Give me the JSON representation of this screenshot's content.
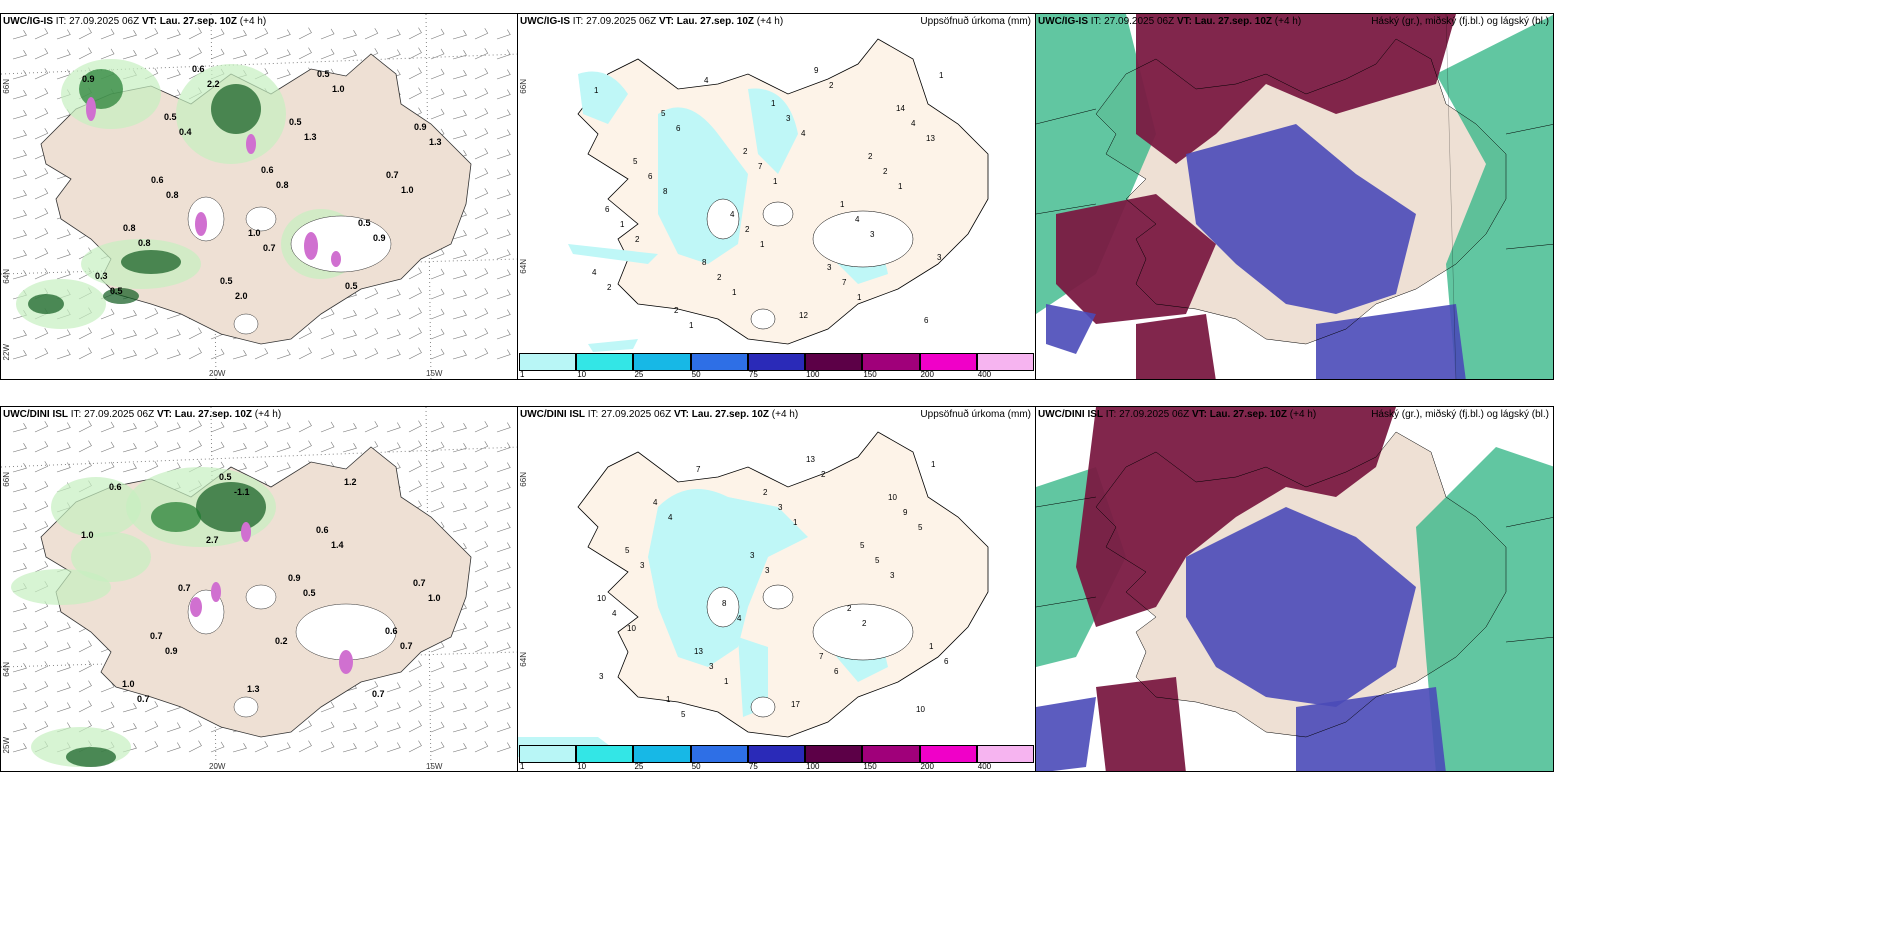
{
  "rows": [
    {
      "model": "UWC/IG-IS",
      "it_label": "IT:",
      "it_value": "27.09.2025 06Z",
      "vt_label": "VT:",
      "vt_value": "Lau. 27.sep. 10Z",
      "lead": "(+4 h)",
      "lon_labels": [
        "20W",
        "15W"
      ],
      "lat_labels_left": [
        "66N",
        "64N",
        "22W"
      ],
      "lat_labels_mid": [
        "66N",
        "64N"
      ],
      "precip_values": [
        "2",
        "1",
        "3",
        "2",
        "1",
        "2",
        "6",
        "8",
        "12",
        "14",
        "5",
        "4",
        "3",
        "6",
        "5",
        "7",
        "4",
        "4",
        "1",
        "3",
        "2",
        "1",
        "2",
        "9",
        "4",
        "6",
        "2",
        "7",
        "1",
        "6",
        "1",
        "3",
        "2",
        "4",
        "4",
        "1",
        "2",
        "1",
        "2",
        "13",
        "8",
        "1",
        "1",
        "1"
      ],
      "wind_values": [
        "0.5",
        "0.6",
        "0.5",
        "0.3",
        "0.6",
        "0.5",
        "0.7",
        "0.8",
        "0.5",
        "0.5",
        "0.9",
        "0.6",
        "1.0",
        "0.5",
        "0.9",
        "0.4",
        "0.8",
        "0.9",
        "0.5",
        "2.2",
        "1.3",
        "1.0",
        "0.8",
        "2.0",
        "1.0",
        "1.3",
        "0.8",
        "0.7"
      ]
    },
    {
      "model": "UWC/DINI ISL",
      "it_label": "IT:",
      "it_value": "27.09.2025 06Z",
      "vt_label": "VT:",
      "vt_value": "Lau. 27.sep. 10Z",
      "lead": "(+4 h)",
      "lon_labels": [
        "20W",
        "15W"
      ],
      "lat_labels_left": [
        "66N",
        "64N",
        "25W"
      ],
      "lat_labels_mid": [
        "66N",
        "64N"
      ],
      "precip_values": [
        "1",
        "1",
        "2",
        "5",
        "10",
        "13",
        "17",
        "10",
        "5",
        "8",
        "7",
        "10",
        "4",
        "3",
        "2",
        "6",
        "5",
        "3",
        "5",
        "4",
        "3",
        "13",
        "9",
        "3",
        "4",
        "6",
        "1",
        "4",
        "3",
        "2",
        "3",
        "7",
        "1",
        "3",
        "10",
        "1",
        "2",
        "5"
      ],
      "wind_values": [
        "0.9",
        "0.6",
        "1.0",
        "0.5",
        "0.6",
        "0.7",
        "0.7",
        "1.3",
        "1.2",
        "1.0",
        "0.7",
        "0.2",
        "0.7",
        "0.6",
        "2.7",
        "0.5",
        "0.7",
        "0.7",
        "-1.1",
        "1.4",
        "1.0",
        "0.9"
      ]
    }
  ],
  "precip_title": "Uppsöfnuð úrkoma (mm)",
  "cloud_title": "Háský (gr.), miðský (fj.bl.) og lágský (bl.)",
  "legend": {
    "labels": [
      "1",
      "10",
      "25",
      "50",
      "75",
      "100",
      "150",
      "200",
      "400"
    ],
    "colors": [
      "#b8f6f6",
      "#33e6e6",
      "#17b8e6",
      "#2e6fe6",
      "#2a2ab8",
      "#5c0047",
      "#a0007a",
      "#f000c8",
      "#f6b4f0"
    ]
  },
  "colors": {
    "land": "#eee0d4",
    "land_precip": "#fdf3e8",
    "precip_light": "#bff7f7",
    "green_light": "#c6f0c0",
    "green_dark": "#0e5a1e",
    "magenta": "#d070d0",
    "cloud_high": "#7a1a42",
    "cloud_mid": "#4a4ab8",
    "cloud_low": "#3ab88a"
  }
}
